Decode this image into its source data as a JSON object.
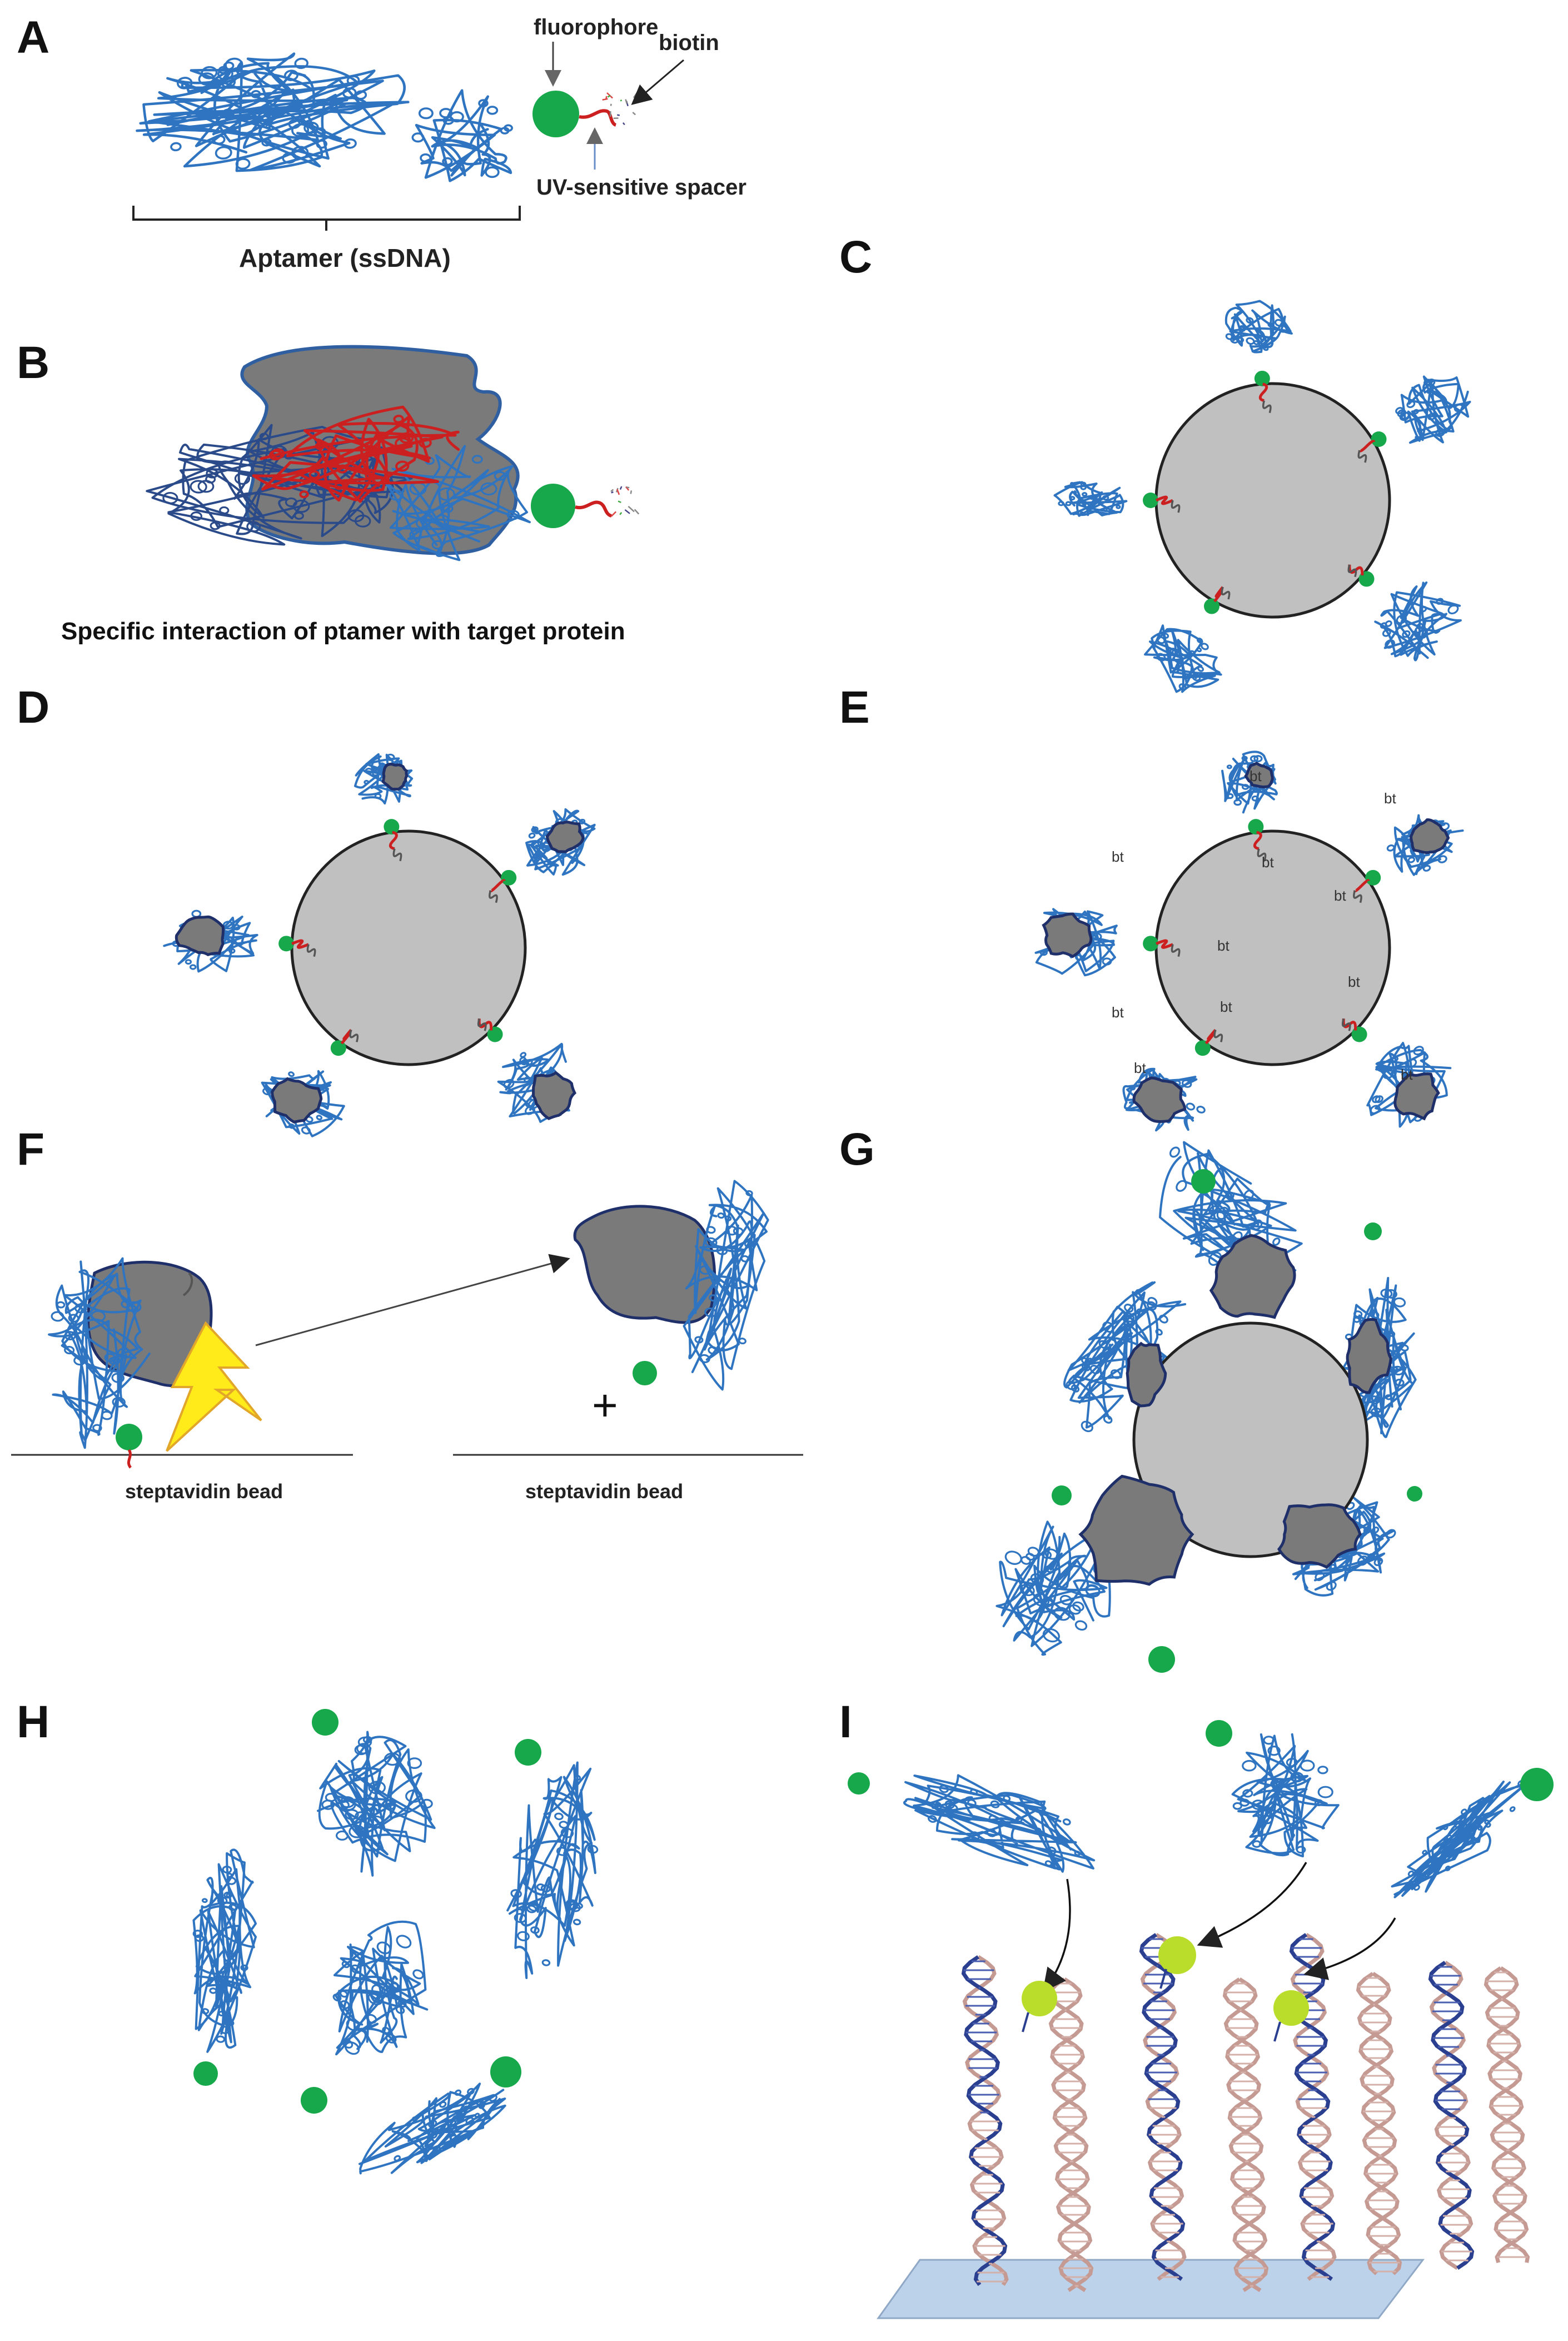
{
  "panels": {
    "A": {
      "label": "A",
      "fluorophore": "fluorophore",
      "biotin": "biotin",
      "spacer": "UV-sensitive spacer",
      "aptamer": "Aptamer (ssDNA)"
    },
    "B": {
      "label": "B",
      "caption": "Specific interaction of ptamer with target protein"
    },
    "C": {
      "label": "C"
    },
    "D": {
      "label": "D"
    },
    "E": {
      "label": "E",
      "bt": "bt"
    },
    "F": {
      "label": "F",
      "bead_left": "steptavidin bead",
      "bead_right": "steptavidin bead",
      "plus": "+"
    },
    "G": {
      "label": "G"
    },
    "H": {
      "label": "H"
    },
    "I": {
      "label": "I"
    }
  },
  "colors": {
    "aptamer": "#2f74c0",
    "fluorophore": "#16a84a",
    "fluorophore_light": "#b9dd2a",
    "spacer": "#cc1f1f",
    "protein": "#7a7a7a",
    "bead": "#c0c0c0",
    "lightning": "#ffeb1a",
    "surface": "#bcd2ea",
    "dna_pink": "#c49a93",
    "dna_blue": "#2a3f8f"
  }
}
